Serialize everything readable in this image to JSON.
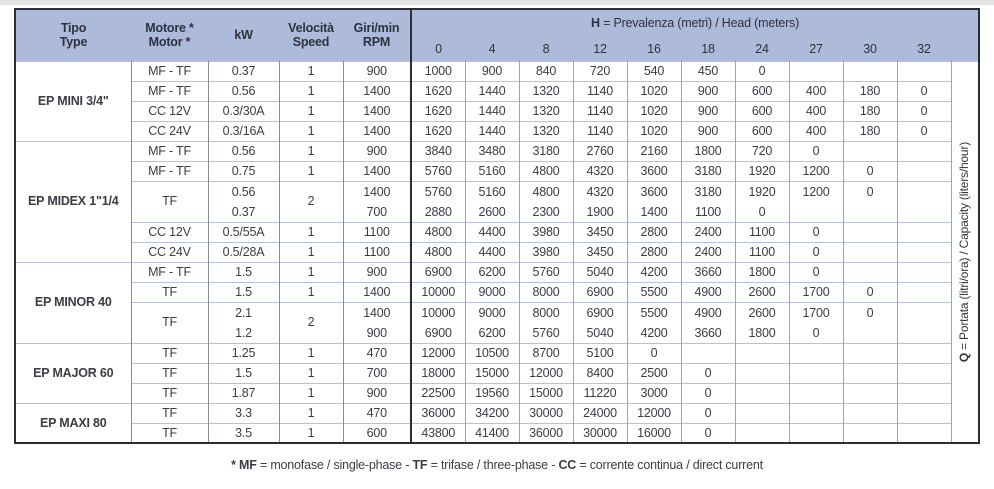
{
  "header": {
    "cols": {
      "tipo": {
        "l1": "Tipo",
        "l2": "Type"
      },
      "motore": {
        "l1": "Motore *",
        "l2": "Motor *"
      },
      "kw": {
        "l1": "kW",
        "l2": ""
      },
      "velocita": {
        "l1": "Velocità",
        "l2": "Speed"
      },
      "giri": {
        "l1": "Giri/min",
        "l2": "RPM"
      }
    },
    "h_prefix": "H",
    "h_rest": " = Prevalenza (metri) / Head (meters)",
    "h_values": [
      "0",
      "4",
      "8",
      "12",
      "16",
      "18",
      "24",
      "27",
      "30",
      "32"
    ]
  },
  "side_label": {
    "prefix": "Q",
    "rest": " = Portata (litri/ora) / Capacity (liters/hour)"
  },
  "footnote": {
    "segments": [
      {
        "t": "* MF",
        "b": true
      },
      {
        "t": " = monofase / single-phase - ",
        "b": false
      },
      {
        "t": "TF",
        "b": true
      },
      {
        "t": " = trifase / three-phase - ",
        "b": false
      },
      {
        "t": "CC",
        "b": true
      },
      {
        "t": " = corrente continua / direct current",
        "b": false
      }
    ]
  },
  "colors": {
    "header_bg": "#aebada",
    "label_bg": "#e7e9f4",
    "dark_border": "#2b2d33",
    "light_line": "#b6c1db",
    "gray_line": "#878c99",
    "data_line": "#9aa4b9"
  },
  "chart_data": {
    "type": "table",
    "title": "H = Prevalenza (metri) / Head (meters)",
    "groups": [
      {
        "name": "EP MINI 3/4\"",
        "rows": [
          {
            "motor": "MF - TF",
            "kw": [
              "0.37"
            ],
            "speed": "1",
            "rpm": [
              "900"
            ],
            "values": [
              [
                "1000",
                "900",
                "840",
                "720",
                "540",
                "450",
                "0",
                "",
                "",
                ""
              ]
            ]
          },
          {
            "motor": "MF - TF",
            "kw": [
              "0.56"
            ],
            "speed": "1",
            "rpm": [
              "1400"
            ],
            "values": [
              [
                "1620",
                "1440",
                "1320",
                "1140",
                "1020",
                "900",
                "600",
                "400",
                "180",
                "0"
              ]
            ]
          },
          {
            "motor": "CC 12V",
            "kw": [
              "0.3/30A"
            ],
            "speed": "1",
            "rpm": [
              "1400"
            ],
            "values": [
              [
                "1620",
                "1440",
                "1320",
                "1140",
                "1020",
                "900",
                "600",
                "400",
                "180",
                "0"
              ]
            ]
          },
          {
            "motor": "CC 24V",
            "kw": [
              "0.3/16A"
            ],
            "speed": "1",
            "rpm": [
              "1400"
            ],
            "values": [
              [
                "1620",
                "1440",
                "1320",
                "1140",
                "1020",
                "900",
                "600",
                "400",
                "180",
                "0"
              ]
            ]
          }
        ]
      },
      {
        "name": "EP MIDEX 1\"1/4",
        "rows": [
          {
            "motor": "MF - TF",
            "kw": [
              "0.56"
            ],
            "speed": "1",
            "rpm": [
              "900"
            ],
            "values": [
              [
                "3840",
                "3480",
                "3180",
                "2760",
                "2160",
                "1800",
                "720",
                "0",
                "",
                ""
              ]
            ]
          },
          {
            "motor": "MF - TF",
            "kw": [
              "0.75"
            ],
            "speed": "1",
            "rpm": [
              "1400"
            ],
            "values": [
              [
                "5760",
                "5160",
                "4800",
                "4320",
                "3600",
                "3180",
                "1920",
                "1200",
                "0",
                ""
              ]
            ]
          },
          {
            "motor": "TF",
            "kw": [
              "0.56",
              "0.37"
            ],
            "speed": "2",
            "rpm": [
              "1400",
              "700"
            ],
            "values": [
              [
                "5760",
                "5160",
                "4800",
                "4320",
                "3600",
                "3180",
                "1920",
                "1200",
                "0",
                ""
              ],
              [
                "2880",
                "2600",
                "2300",
                "1900",
                "1400",
                "1100",
                "0",
                "",
                "",
                ""
              ]
            ]
          },
          {
            "motor": "CC 12V",
            "kw": [
              "0.5/55A"
            ],
            "speed": "1",
            "rpm": [
              "1100"
            ],
            "values": [
              [
                "4800",
                "4400",
                "3980",
                "3450",
                "2800",
                "2400",
                "1100",
                "0",
                "",
                ""
              ]
            ]
          },
          {
            "motor": "CC 24V",
            "kw": [
              "0.5/28A"
            ],
            "speed": "1",
            "rpm": [
              "1100"
            ],
            "values": [
              [
                "4800",
                "4400",
                "3980",
                "3450",
                "2800",
                "2400",
                "1100",
                "0",
                "",
                ""
              ]
            ]
          }
        ]
      },
      {
        "name": "EP MINOR 40",
        "rows": [
          {
            "motor": "MF - TF",
            "kw": [
              "1.5"
            ],
            "speed": "1",
            "rpm": [
              "900"
            ],
            "values": [
              [
                "6900",
                "6200",
                "5760",
                "5040",
                "4200",
                "3660",
                "1800",
                "0",
                "",
                ""
              ]
            ]
          },
          {
            "motor": "TF",
            "kw": [
              "1.5"
            ],
            "speed": "1",
            "rpm": [
              "1400"
            ],
            "values": [
              [
                "10000",
                "9000",
                "8000",
                "6900",
                "5500",
                "4900",
                "2600",
                "1700",
                "0",
                ""
              ]
            ]
          },
          {
            "motor": "TF",
            "kw": [
              "2.1",
              "1.2"
            ],
            "speed": "2",
            "rpm": [
              "1400",
              "900"
            ],
            "values": [
              [
                "10000",
                "9000",
                "8000",
                "6900",
                "5500",
                "4900",
                "2600",
                "1700",
                "0",
                ""
              ],
              [
                "6900",
                "6200",
                "5760",
                "5040",
                "4200",
                "3660",
                "1800",
                "0",
                "",
                ""
              ]
            ]
          }
        ]
      },
      {
        "name": "EP MAJOR 60",
        "rows": [
          {
            "motor": "TF",
            "kw": [
              "1.25"
            ],
            "speed": "1",
            "rpm": [
              "470"
            ],
            "values": [
              [
                "12000",
                "10500",
                "8700",
                "5100",
                "0",
                "",
                "",
                "",
                "",
                ""
              ]
            ]
          },
          {
            "motor": "TF",
            "kw": [
              "1.5"
            ],
            "speed": "1",
            "rpm": [
              "700"
            ],
            "values": [
              [
                "18000",
                "15000",
                "12000",
                "8400",
                "2500",
                "0",
                "",
                "",
                "",
                ""
              ]
            ]
          },
          {
            "motor": "TF",
            "kw": [
              "1.87"
            ],
            "speed": "1",
            "rpm": [
              "900"
            ],
            "values": [
              [
                "22500",
                "19560",
                "15000",
                "11220",
                "3000",
                "0",
                "",
                "",
                "",
                ""
              ]
            ]
          }
        ]
      },
      {
        "name": "EP MAXI 80",
        "rows": [
          {
            "motor": "TF",
            "kw": [
              "3.3"
            ],
            "speed": "1",
            "rpm": [
              "470"
            ],
            "values": [
              [
                "36000",
                "34200",
                "30000",
                "24000",
                "12000",
                "0",
                "",
                "",
                "",
                ""
              ]
            ]
          },
          {
            "motor": "TF",
            "kw": [
              "3.5"
            ],
            "speed": "1",
            "rpm": [
              "600"
            ],
            "values": [
              [
                "43800",
                "41400",
                "36000",
                "30000",
                "16000",
                "0",
                "",
                "",
                "",
                ""
              ]
            ]
          }
        ]
      }
    ]
  }
}
